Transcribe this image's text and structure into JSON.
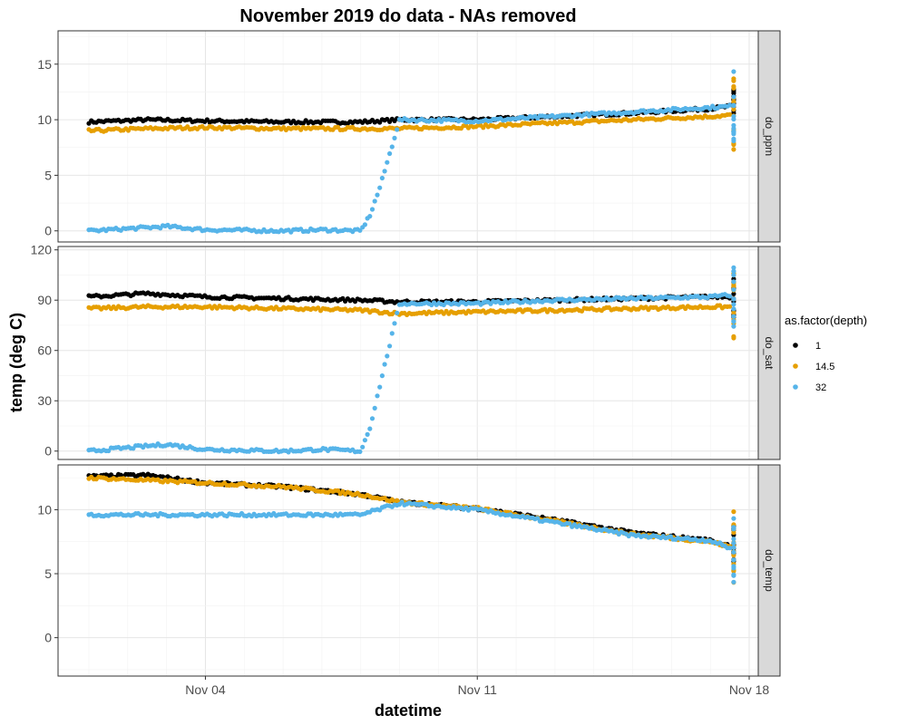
{
  "chart_data": {
    "type": "scatter",
    "title": "November 2019 do data - NAs removed",
    "xlabel": "datetime",
    "ylabel": "temp (deg C)",
    "x_ticks": [
      "Nov 04",
      "Nov 11",
      "Nov 18"
    ],
    "x_tick_dates": [
      "2019-11-04",
      "2019-11-11",
      "2019-11-18"
    ],
    "xlim": [
      "2019-11-01T00:00",
      "2019-11-18T00:00"
    ],
    "grid": true,
    "legend": {
      "title": "as.factor(depth)",
      "placement": "right",
      "entries": [
        {
          "label": "1",
          "color": "#000000"
        },
        {
          "label": "14.5",
          "color": "#E69F00"
        },
        {
          "label": "32",
          "color": "#56B4E9"
        }
      ]
    },
    "panels": [
      {
        "strip": "do_ppm",
        "ylim": [
          -1,
          18
        ],
        "yticks": [
          "0",
          "5",
          "10",
          "15"
        ],
        "series": [
          {
            "name": "1",
            "color": "#000000",
            "x": [
              "2019-11-01T00:00",
              "2019-11-02T12:00",
              "2019-11-04T00:00",
              "2019-11-06T00:00",
              "2019-11-08T00:00",
              "2019-11-09T00:00",
              "2019-11-11T00:00",
              "2019-11-13T00:00",
              "2019-11-15T00:00",
              "2019-11-17T00:00",
              "2019-11-17T12:00"
            ],
            "y": [
              9.8,
              10.0,
              9.9,
              9.8,
              9.8,
              10.0,
              10.0,
              10.3,
              10.6,
              11.0,
              11.2
            ]
          },
          {
            "name": "14.5",
            "color": "#E69F00",
            "x": [
              "2019-11-01T00:00",
              "2019-11-02T12:00",
              "2019-11-04T00:00",
              "2019-11-06T00:00",
              "2019-11-08T00:00",
              "2019-11-09T00:00",
              "2019-11-11T00:00",
              "2019-11-13T00:00",
              "2019-11-15T00:00",
              "2019-11-17T00:00",
              "2019-11-17T12:00"
            ],
            "y": [
              9.0,
              9.2,
              9.3,
              9.2,
              9.2,
              9.2,
              9.4,
              9.7,
              10.0,
              10.3,
              10.4
            ]
          },
          {
            "name": "32",
            "color": "#56B4E9",
            "x": [
              "2019-11-01T00:00",
              "2019-11-02T00:00",
              "2019-11-03T00:00",
              "2019-11-04T00:00",
              "2019-11-06T00:00",
              "2019-11-07T00:00",
              "2019-11-08T00:00",
              "2019-11-08T06:00",
              "2019-11-08T12:00",
              "2019-11-09T00:00",
              "2019-11-11T00:00",
              "2019-11-13T00:00",
              "2019-11-15T00:00",
              "2019-11-17T00:00",
              "2019-11-17T12:00"
            ],
            "y": [
              0.0,
              0.2,
              0.4,
              0.1,
              0.0,
              0.1,
              0.0,
              1.5,
              4.0,
              10.0,
              9.9,
              10.3,
              10.7,
              11.1,
              11.2
            ]
          }
        ]
      },
      {
        "strip": "do_sat",
        "ylim": [
          -5,
          122
        ],
        "yticks": [
          "0",
          "30",
          "60",
          "90",
          "120"
        ],
        "series": [
          {
            "name": "1",
            "color": "#000000",
            "x": [
              "2019-11-01T00:00",
              "2019-11-02T12:00",
              "2019-11-04T00:00",
              "2019-11-06T00:00",
              "2019-11-08T00:00",
              "2019-11-09T00:00",
              "2019-11-11T00:00",
              "2019-11-13T00:00",
              "2019-11-15T00:00",
              "2019-11-17T00:00",
              "2019-11-17T12:00"
            ],
            "y": [
              92,
              94,
              92,
              91,
              90,
              89,
              89,
              90,
              91,
              92,
              92
            ]
          },
          {
            "name": "14.5",
            "color": "#E69F00",
            "x": [
              "2019-11-01T00:00",
              "2019-11-02T12:00",
              "2019-11-04T00:00",
              "2019-11-06T00:00",
              "2019-11-08T00:00",
              "2019-11-09T00:00",
              "2019-11-11T00:00",
              "2019-11-13T00:00",
              "2019-11-15T00:00",
              "2019-11-17T00:00",
              "2019-11-17T12:00"
            ],
            "y": [
              85,
              86,
              86,
              85,
              84,
              82,
              83,
              84,
              85,
              86,
              86
            ]
          },
          {
            "name": "32",
            "color": "#56B4E9",
            "x": [
              "2019-11-01T00:00",
              "2019-11-02T00:00",
              "2019-11-03T00:00",
              "2019-11-04T00:00",
              "2019-11-06T00:00",
              "2019-11-07T00:00",
              "2019-11-08T00:00",
              "2019-11-08T06:00",
              "2019-11-08T12:00",
              "2019-11-09T00:00",
              "2019-11-11T00:00",
              "2019-11-13T00:00",
              "2019-11-15T00:00",
              "2019-11-17T00:00",
              "2019-11-17T12:00"
            ],
            "y": [
              0,
              2,
              4,
              1,
              0,
              1,
              0,
              15,
              40,
              88,
              88,
              90,
              91,
              92,
              93
            ]
          }
        ]
      },
      {
        "strip": "do_temp",
        "ylim": [
          -3,
          13.5
        ],
        "yticks": [
          "0",
          "5",
          "10"
        ],
        "series": [
          {
            "name": "1",
            "color": "#000000",
            "x": [
              "2019-11-01T00:00",
              "2019-11-02T12:00",
              "2019-11-04T00:00",
              "2019-11-06T00:00",
              "2019-11-08T00:00",
              "2019-11-09T00:00",
              "2019-11-11T00:00",
              "2019-11-13T00:00",
              "2019-11-15T00:00",
              "2019-11-17T00:00",
              "2019-11-17T12:00"
            ],
            "y": [
              12.6,
              12.7,
              12.1,
              11.8,
              11.2,
              10.6,
              10.1,
              9.2,
              8.2,
              7.6,
              7.2
            ]
          },
          {
            "name": "14.5",
            "color": "#E69F00",
            "x": [
              "2019-11-01T00:00",
              "2019-11-02T12:00",
              "2019-11-04T00:00",
              "2019-11-06T00:00",
              "2019-11-08T00:00",
              "2019-11-09T00:00",
              "2019-11-11T00:00",
              "2019-11-13T00:00",
              "2019-11-15T00:00",
              "2019-11-17T00:00",
              "2019-11-17T12:00"
            ],
            "y": [
              12.5,
              12.3,
              12.1,
              11.8,
              11.2,
              10.6,
              10.1,
              9.1,
              8.1,
              7.5,
              7.1
            ]
          },
          {
            "name": "32",
            "color": "#56B4E9",
            "x": [
              "2019-11-01T00:00",
              "2019-11-02T12:00",
              "2019-11-04T00:00",
              "2019-11-06T00:00",
              "2019-11-08T00:00",
              "2019-11-09T00:00",
              "2019-11-11T00:00",
              "2019-11-13T00:00",
              "2019-11-15T00:00",
              "2019-11-17T00:00",
              "2019-11-17T12:00"
            ],
            "y": [
              9.6,
              9.6,
              9.6,
              9.6,
              9.6,
              10.5,
              10.0,
              9.0,
              8.0,
              7.6,
              7.0
            ]
          }
        ]
      }
    ]
  }
}
